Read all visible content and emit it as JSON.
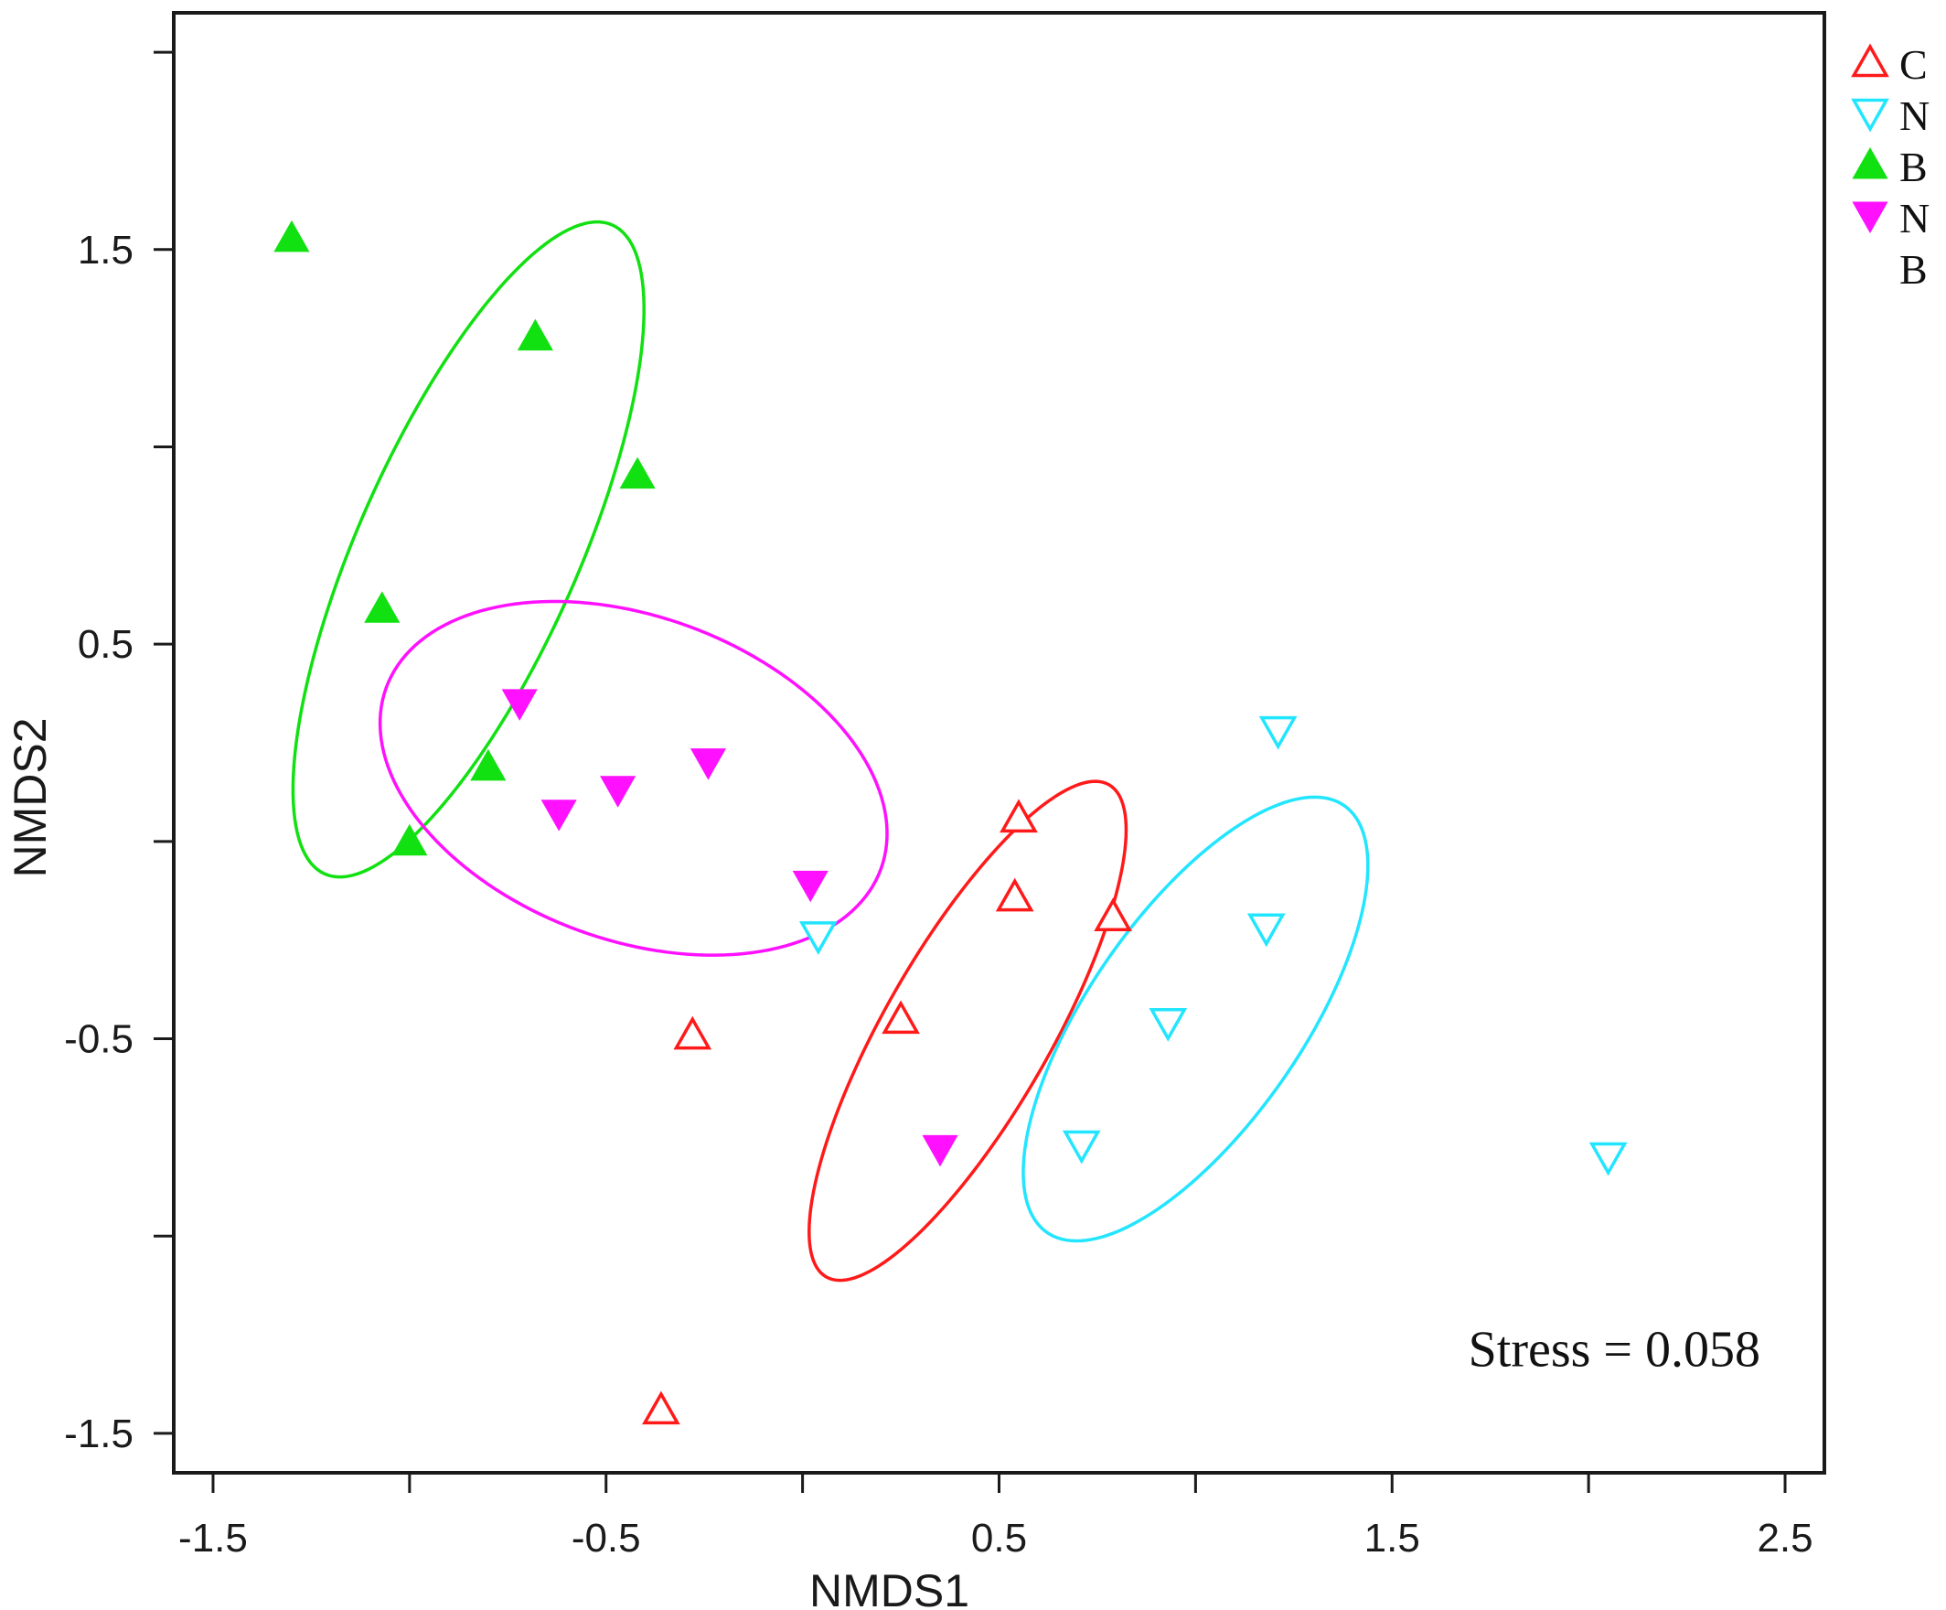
{
  "chart_data": {
    "type": "scatter",
    "xlabel": "NMDS1",
    "ylabel": "NMDS2",
    "xlim": [
      -1.6,
      2.6
    ],
    "ylim": [
      -1.6,
      2.1
    ],
    "xticks": [
      -1.5,
      -1.0,
      -0.5,
      0.0,
      0.5,
      1.0,
      1.5,
      2.0,
      2.5
    ],
    "xtick_labels": [
      "-1.5",
      "",
      "-0.5",
      "",
      "0.5",
      "",
      "1.5",
      "",
      "2.5"
    ],
    "yticks": [
      -1.5,
      -1.0,
      -0.5,
      0.0,
      0.5,
      1.0,
      1.5,
      2.0
    ],
    "ytick_labels": [
      "-1.5",
      "",
      "-0.5",
      "",
      "0.5",
      "",
      "1.5",
      ""
    ],
    "grid": false,
    "legend_position": "top-right",
    "annotation": "Stress = 0.058",
    "series": [
      {
        "name": "C",
        "color": "#ff1a1a",
        "marker": "triangle-up-open",
        "points": [
          [
            0.55,
            0.06
          ],
          [
            0.54,
            -0.14
          ],
          [
            0.79,
            -0.19
          ],
          [
            0.25,
            -0.45
          ],
          [
            -0.28,
            -0.49
          ],
          [
            -0.36,
            -1.44
          ]
        ],
        "ellipse": {
          "cx": 0.42,
          "cy": -0.48,
          "rx": 0.72,
          "ry": 0.21,
          "angle_deg": 60
        }
      },
      {
        "name": "N",
        "color": "#22e5ff",
        "marker": "triangle-down-open",
        "points": [
          [
            1.21,
            0.28
          ],
          [
            1.18,
            -0.22
          ],
          [
            0.04,
            -0.24
          ],
          [
            0.93,
            -0.46
          ],
          [
            0.71,
            -0.77
          ],
          [
            2.05,
            -0.8
          ]
        ],
        "ellipse": {
          "cx": 1.0,
          "cy": -0.45,
          "rx": 0.66,
          "ry": 0.27,
          "angle_deg": 55
        }
      },
      {
        "name": "B",
        "color": "#11e011",
        "marker": "triangle-up-filled",
        "points": [
          [
            -1.3,
            1.53
          ],
          [
            -0.68,
            1.28
          ],
          [
            -0.42,
            0.93
          ],
          [
            -1.07,
            0.59
          ],
          [
            -0.8,
            0.19
          ],
          [
            -1.0,
            0.0
          ]
        ],
        "ellipse": {
          "cx": -0.85,
          "cy": 0.74,
          "rx": 0.9,
          "ry": 0.28,
          "angle_deg": 66
        }
      },
      {
        "name": "N\nB",
        "legend_lines": [
          "N",
          "B"
        ],
        "color": "#ff11ff",
        "marker": "triangle-down-filled",
        "points": [
          [
            -0.72,
            0.35
          ],
          [
            -0.24,
            0.2
          ],
          [
            -0.47,
            0.13
          ],
          [
            -0.62,
            0.07
          ],
          [
            0.02,
            -0.11
          ],
          [
            0.35,
            -0.78
          ]
        ],
        "ellipse": {
          "cx": -0.43,
          "cy": 0.16,
          "rx": 0.67,
          "ry": 0.41,
          "angle_deg": -20
        }
      }
    ]
  }
}
